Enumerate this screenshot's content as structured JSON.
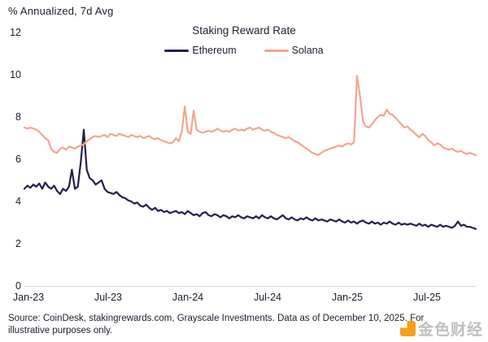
{
  "header": {
    "y_axis_title": "% Annualized, 7d Avg"
  },
  "chart_data": {
    "type": "line",
    "title": "Staking Reward Rate",
    "ylabel": "% Annualized, 7d Avg",
    "ylim": [
      0,
      12
    ],
    "yticks": [
      0,
      2,
      4,
      6,
      8,
      10,
      12
    ],
    "xticks": [
      "Jan-23",
      "Jul-23",
      "Jan-24",
      "Jul-24",
      "Jan-25",
      "Jul-25"
    ],
    "grid": false,
    "legend_position": "top-center",
    "axis_line_color": "#d9d9d9",
    "series": [
      {
        "name": "Ethereum",
        "color": "#23204b",
        "values": [
          4.6,
          4.75,
          4.65,
          4.8,
          4.7,
          4.85,
          4.6,
          4.9,
          4.7,
          4.6,
          4.75,
          4.5,
          4.35,
          4.6,
          4.5,
          4.7,
          5.5,
          4.6,
          4.7,
          5.9,
          7.4,
          5.5,
          5.1,
          5.0,
          4.8,
          4.9,
          5.0,
          4.6,
          4.45,
          4.4,
          4.35,
          4.45,
          4.3,
          4.2,
          4.15,
          4.05,
          4.0,
          3.9,
          3.95,
          3.8,
          3.75,
          3.85,
          3.7,
          3.6,
          3.7,
          3.55,
          3.6,
          3.5,
          3.55,
          3.45,
          3.5,
          3.55,
          3.45,
          3.5,
          3.4,
          3.55,
          3.45,
          3.35,
          3.4,
          3.3,
          3.45,
          3.5,
          3.35,
          3.3,
          3.4,
          3.35,
          3.25,
          3.35,
          3.3,
          3.2,
          3.3,
          3.25,
          3.35,
          3.25,
          3.2,
          3.3,
          3.25,
          3.2,
          3.3,
          3.2,
          3.35,
          3.25,
          3.2,
          3.3,
          3.2,
          3.15,
          3.25,
          3.35,
          3.2,
          3.15,
          3.25,
          3.15,
          3.1,
          3.2,
          3.15,
          3.25,
          3.15,
          3.1,
          3.2,
          3.1,
          3.15,
          3.1,
          3.05,
          3.15,
          3.1,
          3.05,
          3.15,
          3.05,
          3.0,
          3.1,
          3.0,
          3.05,
          2.95,
          3.05,
          3.1,
          3.0,
          2.95,
          3.05,
          2.95,
          3.0,
          2.9,
          3.0,
          2.95,
          3.05,
          2.95,
          2.9,
          3.0,
          2.9,
          2.95,
          2.9,
          2.95,
          2.9,
          2.85,
          2.95,
          2.85,
          2.9,
          2.8,
          2.9,
          2.85,
          2.8,
          2.9,
          2.8,
          2.85,
          2.8,
          2.75,
          2.85,
          3.05,
          2.85,
          2.9,
          2.8,
          2.8,
          2.75,
          2.7
        ]
      },
      {
        "name": "Solana",
        "color": "#f5a58f",
        "values": [
          7.5,
          7.45,
          7.5,
          7.45,
          7.4,
          7.3,
          7.15,
          7.0,
          6.9,
          6.5,
          6.35,
          6.3,
          6.5,
          6.55,
          6.45,
          6.6,
          6.55,
          6.5,
          6.6,
          6.65,
          6.7,
          6.85,
          6.95,
          7.05,
          7.1,
          7.05,
          7.1,
          7.15,
          7.05,
          7.2,
          7.15,
          7.1,
          7.2,
          7.15,
          7.1,
          7.05,
          7.15,
          7.1,
          7.05,
          7.1,
          7.0,
          7.05,
          7.1,
          7.0,
          6.95,
          7.0,
          6.9,
          6.85,
          6.8,
          6.75,
          6.8,
          7.0,
          6.85,
          7.3,
          8.5,
          7.3,
          7.2,
          8.3,
          7.4,
          7.3,
          7.25,
          7.3,
          7.35,
          7.3,
          7.35,
          7.45,
          7.35,
          7.3,
          7.35,
          7.3,
          7.4,
          7.45,
          7.35,
          7.4,
          7.35,
          7.45,
          7.5,
          7.4,
          7.45,
          7.5,
          7.4,
          7.35,
          7.4,
          7.3,
          7.25,
          7.15,
          7.1,
          7.05,
          7.0,
          7.05,
          6.95,
          6.85,
          6.8,
          6.7,
          6.6,
          6.5,
          6.4,
          6.3,
          6.25,
          6.2,
          6.3,
          6.4,
          6.45,
          6.5,
          6.55,
          6.6,
          6.65,
          6.6,
          6.7,
          6.75,
          6.7,
          6.8,
          9.95,
          9.0,
          7.8,
          7.55,
          7.5,
          7.65,
          7.85,
          8.0,
          8.1,
          8.05,
          8.35,
          8.15,
          8.1,
          7.95,
          7.8,
          7.65,
          7.5,
          7.55,
          7.4,
          7.3,
          7.15,
          7.05,
          7.2,
          7.1,
          6.9,
          6.8,
          6.65,
          6.75,
          6.7,
          6.55,
          6.5,
          6.45,
          6.5,
          6.4,
          6.35,
          6.4,
          6.3,
          6.25,
          6.3,
          6.25,
          6.2
        ]
      }
    ]
  },
  "footer": {
    "source": "Source: CoinDesk, stakingrewards.com, Grayscale Investments. Data as of December 10, 2025. For illustrative purposes only."
  },
  "watermark": {
    "text": "金色财经",
    "logo_color": "#f7a01b"
  }
}
